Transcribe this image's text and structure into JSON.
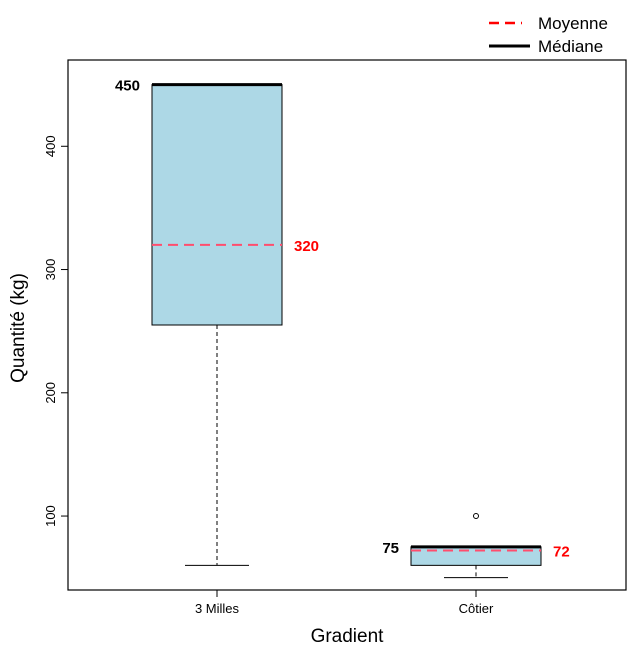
{
  "chart_data": {
    "type": "box",
    "xlabel": "Gradient",
    "ylabel": "Quantité (kg)",
    "ylim": [
      40,
      470
    ],
    "y_ticks": [
      100,
      200,
      300,
      400
    ],
    "categories": [
      "3 Milles",
      "Côtier"
    ],
    "legend": {
      "position": "top-right",
      "items": [
        {
          "label": "Moyenne",
          "color": "#ff0000",
          "style": "dashed"
        },
        {
          "label": "Médiane",
          "color": "#000000",
          "style": "solid"
        }
      ]
    },
    "box_color": "#add8e6",
    "mean_color": "#ff4d6d",
    "boxes": [
      {
        "category": "3 Milles",
        "whisker_low": 60,
        "q1": 255,
        "median": 450,
        "q3": 450,
        "whisker_high": 450,
        "mean": 320,
        "outliers": [],
        "median_label": "450",
        "mean_label": "320"
      },
      {
        "category": "Côtier",
        "whisker_low": 50,
        "q1": 60,
        "median": 75,
        "q3": 75,
        "whisker_high": 75,
        "mean": 72,
        "outliers": [
          100
        ],
        "median_label": "75",
        "mean_label": "72"
      }
    ]
  }
}
